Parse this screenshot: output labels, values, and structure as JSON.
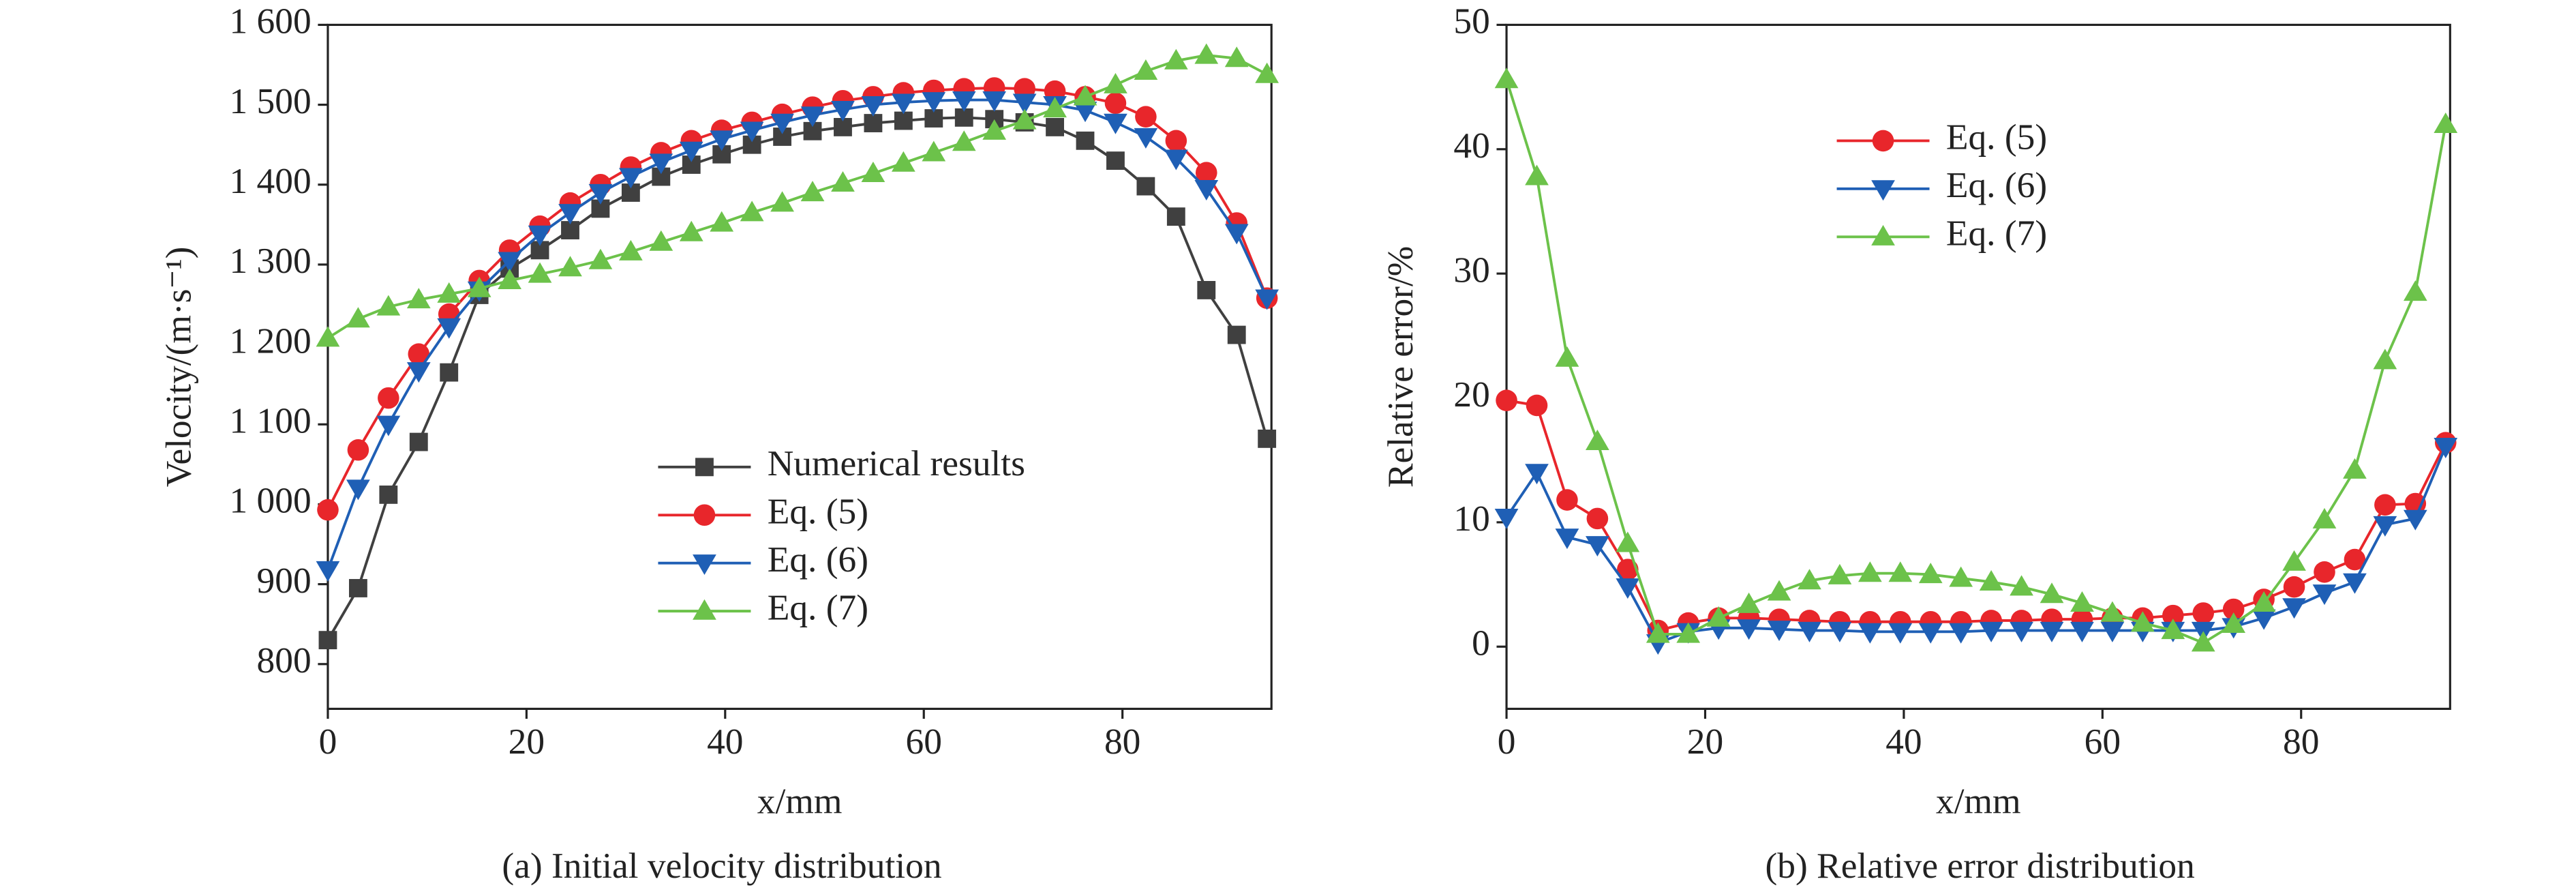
{
  "chart_data": [
    {
      "type": "line",
      "caption": "(a) Initial velocity distribution",
      "xlabel": "x/mm",
      "ylabel": "Velocity/(m·s⁻¹)",
      "x": [
        0,
        3.05,
        6.1,
        9.15,
        12.2,
        15.25,
        18.3,
        21.35,
        24.4,
        27.45,
        30.5,
        33.55,
        36.6,
        39.65,
        42.7,
        45.75,
        48.8,
        51.85,
        54.9,
        57.95,
        61,
        64.05,
        67.1,
        70.15,
        73.2,
        76.25,
        79.3,
        82.35,
        85.4,
        88.45,
        91.5,
        94.55
      ],
      "xlim": [
        0,
        95
      ],
      "xticks": [
        0,
        20,
        40,
        60,
        80
      ],
      "ylim": [
        744,
        1600
      ],
      "yticks": [
        800,
        900,
        {
          "value": 1000,
          "label": "1 000"
        },
        {
          "value": 1100,
          "label": "1 100"
        },
        {
          "value": 1200,
          "label": "1 200"
        },
        {
          "value": 1300,
          "label": "1 300"
        },
        {
          "value": 1400,
          "label": "1 400"
        },
        {
          "value": 1500,
          "label": "1 500"
        },
        {
          "value": 1600,
          "label": "1 600"
        }
      ],
      "legend": "lower center",
      "series": [
        {
          "name": "Numerical results",
          "color": "#404040",
          "marker": "square",
          "values": [
            830,
            895,
            1012,
            1078,
            1165,
            1262,
            1295,
            1318,
            1343,
            1370,
            1390,
            1410,
            1425,
            1438,
            1450,
            1460,
            1467,
            1472,
            1477,
            1480,
            1483,
            1484,
            1482,
            1478,
            1472,
            1455,
            1430,
            1398,
            1360,
            1268,
            1212,
            1082
          ]
        },
        {
          "name": "Eq. (5)",
          "color": "#e8262b",
          "marker": "circle",
          "values": [
            993,
            1068,
            1133,
            1188,
            1238,
            1280,
            1318,
            1348,
            1377,
            1400,
            1422,
            1440,
            1455,
            1468,
            1478,
            1488,
            1497,
            1505,
            1510,
            1515,
            1518,
            1520,
            1521,
            1520,
            1517,
            1510,
            1502,
            1485,
            1455,
            1415,
            1352,
            1258
          ]
        },
        {
          "name": "Eq. (6)",
          "color": "#1f5fb5",
          "marker": "triangle-down",
          "values": [
            918,
            1020,
            1100,
            1167,
            1222,
            1268,
            1305,
            1338,
            1365,
            1390,
            1410,
            1428,
            1443,
            1457,
            1468,
            1478,
            1487,
            1494,
            1500,
            1503,
            1505,
            1506,
            1506,
            1503,
            1500,
            1493,
            1478,
            1460,
            1433,
            1395,
            1340,
            1258
          ]
        },
        {
          "name": "Eq. (7)",
          "color": "#6cc24a",
          "marker": "triangle-up",
          "values": [
            1208,
            1232,
            1247,
            1256,
            1263,
            1270,
            1280,
            1288,
            1296,
            1305,
            1316,
            1328,
            1340,
            1352,
            1365,
            1377,
            1390,
            1402,
            1414,
            1427,
            1440,
            1453,
            1467,
            1480,
            1495,
            1510,
            1525,
            1542,
            1555,
            1562,
            1558,
            1538
          ]
        }
      ]
    },
    {
      "type": "line",
      "caption": "(b) Relative error distribution",
      "xlabel": "x/mm",
      "ylabel": "Relative error/%",
      "x": [
        0,
        3.05,
        6.1,
        9.15,
        12.2,
        15.25,
        18.3,
        21.35,
        24.4,
        27.45,
        30.5,
        33.55,
        36.6,
        39.65,
        42.7,
        45.75,
        48.8,
        51.85,
        54.9,
        57.95,
        61,
        64.05,
        67.1,
        70.15,
        73.2,
        76.25,
        79.3,
        82.35,
        85.4,
        88.45,
        91.5,
        94.55
      ],
      "xlim": [
        0,
        95
      ],
      "xticks": [
        0,
        20,
        40,
        60,
        80
      ],
      "ylim": [
        -5,
        50
      ],
      "yticks": [
        0,
        10,
        20,
        30,
        40,
        50
      ],
      "legend": "upper center",
      "series": [
        {
          "name": "Eq. (5)",
          "color": "#e8262b",
          "marker": "circle",
          "values": [
            19.8,
            19.4,
            11.8,
            10.3,
            6.2,
            1.3,
            1.9,
            2.3,
            2.3,
            2.2,
            2.1,
            2.0,
            2.0,
            2.0,
            2.0,
            2.0,
            2.1,
            2.1,
            2.2,
            2.2,
            2.3,
            2.3,
            2.5,
            2.7,
            3.0,
            3.8,
            4.8,
            6.0,
            7.0,
            11.4,
            11.5,
            16.4
          ]
        },
        {
          "name": "Eq. (6)",
          "color": "#1f5fb5",
          "marker": "triangle-down",
          "values": [
            10.4,
            14,
            8.8,
            8.2,
            4.8,
            0.3,
            1.2,
            1.5,
            1.5,
            1.4,
            1.3,
            1.3,
            1.2,
            1.2,
            1.2,
            1.2,
            1.3,
            1.3,
            1.3,
            1.3,
            1.3,
            1.3,
            1.3,
            1.3,
            1.6,
            2.3,
            3.2,
            4.3,
            5.2,
            9.8,
            10.3,
            16.1
          ]
        },
        {
          "name": "Eq. (7)",
          "color": "#6cc24a",
          "marker": "triangle-up",
          "values": [
            45.6,
            37.8,
            23.2,
            16.5,
            8.3,
            1.0,
            1.0,
            2.3,
            3.4,
            4.4,
            5.3,
            5.7,
            5.9,
            5.9,
            5.8,
            5.5,
            5.2,
            4.8,
            4.2,
            3.5,
            2.7,
            1.9,
            1.3,
            0.3,
            1.8,
            3.5,
            6.8,
            10.2,
            14.2,
            23.0,
            28.5,
            42.0
          ]
        }
      ]
    }
  ]
}
